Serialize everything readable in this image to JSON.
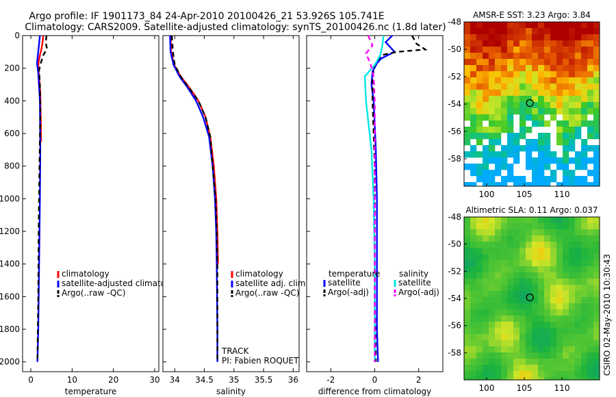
{
  "header": {
    "line1": "Argo profile: IF 1901173_84 24-Apr-2010 20100426_21 53.926S 105.741E",
    "line2": "Climatology: CARS2009. Satellite-adjusted climatology: synTS_20100426.nc (1.8d later)"
  },
  "side_label": "CSIRO 02-May-2010 10:30:43",
  "colors": {
    "red": "#ff0000",
    "blue": "#0000ff",
    "black": "#000000",
    "cyan": "#00e5e5",
    "magenta": "#ff00ff"
  },
  "chart_data": [
    {
      "type": "line",
      "title": "",
      "xlabel": "temperature",
      "ylabel": "",
      "xlim": [
        -2,
        31
      ],
      "ylim": [
        2060,
        0
      ],
      "xticks": [
        0,
        10,
        20,
        30
      ],
      "xtick_labels": [
        "0",
        "10",
        "20",
        "30"
      ],
      "yticks": [
        0,
        200,
        400,
        600,
        800,
        1000,
        1200,
        1400,
        1600,
        1800,
        2000
      ],
      "ytick_labels": [
        "0",
        "200",
        "400",
        "600",
        "800",
        "1000",
        "1200",
        "1400",
        "1600",
        "1800",
        "2000"
      ],
      "legend": [
        "climatology",
        "satellite-adjusted climatology",
        "Argo(..raw -QC)"
      ],
      "series": [
        {
          "name": "climatology",
          "color": "red",
          "style": "solid",
          "points": [
            [
              3.0,
              0
            ],
            [
              2.9,
              30
            ],
            [
              2.6,
              80
            ],
            [
              2.2,
              120
            ],
            [
              1.9,
              160
            ],
            [
              1.8,
              190
            ],
            [
              2.0,
              250
            ],
            [
              2.3,
              350
            ],
            [
              2.4,
              500
            ],
            [
              2.5,
              650
            ]
          ]
        },
        {
          "name": "satellite-adjusted climatology",
          "color": "blue",
          "style": "solid",
          "points": [
            [
              2.2,
              0
            ],
            [
              2.0,
              50
            ],
            [
              1.7,
              120
            ],
            [
              1.5,
              170
            ],
            [
              1.8,
              230
            ],
            [
              2.2,
              400
            ],
            [
              2.3,
              700
            ],
            [
              2.2,
              1000
            ],
            [
              2.0,
              1400
            ],
            [
              1.8,
              1800
            ],
            [
              1.6,
              2000
            ]
          ]
        },
        {
          "name": "Argo(..raw -QC)",
          "color": "black",
          "style": "dashed",
          "points": [
            [
              3.8,
              0
            ],
            [
              3.6,
              40
            ],
            [
              3.9,
              80
            ],
            [
              3.0,
              120
            ],
            [
              2.4,
              170
            ],
            [
              2.0,
              210
            ],
            [
              2.2,
              300
            ],
            [
              2.3,
              450
            ],
            [
              2.1,
              800
            ],
            [
              1.9,
              1200
            ],
            [
              1.8,
              1600
            ],
            [
              1.6,
              2000
            ]
          ]
        }
      ]
    },
    {
      "type": "line",
      "title": "",
      "xlabel": "salinity",
      "ylabel": "",
      "xlim": [
        33.8,
        36.1
      ],
      "ylim": [
        2060,
        0
      ],
      "xticks": [
        34,
        34.5,
        35,
        35.5,
        36
      ],
      "xtick_labels": [
        "34",
        "34.5",
        "35",
        "35.5",
        "36"
      ],
      "legend": [
        "climatology",
        "satellite adj. clim.",
        "Argo(..raw -QC)"
      ],
      "annotations": [
        "TRACK",
        "PI: Fabien ROQUET"
      ],
      "series": [
        {
          "name": "climatology",
          "color": "red",
          "style": "solid",
          "points": [
            [
              33.93,
              0
            ],
            [
              33.94,
              100
            ],
            [
              33.99,
              180
            ],
            [
              34.1,
              250
            ],
            [
              34.25,
              320
            ],
            [
              34.4,
              400
            ],
            [
              34.52,
              500
            ],
            [
              34.6,
              620
            ],
            [
              34.66,
              800
            ],
            [
              34.7,
              1000
            ],
            [
              34.72,
              1200
            ],
            [
              34.73,
              1400
            ]
          ]
        },
        {
          "name": "satellite adj. clim.",
          "color": "blue",
          "style": "solid",
          "points": [
            [
              33.92,
              0
            ],
            [
              33.93,
              100
            ],
            [
              33.98,
              180
            ],
            [
              34.08,
              250
            ],
            [
              34.22,
              320
            ],
            [
              34.36,
              400
            ],
            [
              34.48,
              500
            ],
            [
              34.58,
              620
            ],
            [
              34.64,
              800
            ],
            [
              34.68,
              1000
            ],
            [
              34.7,
              1200
            ],
            [
              34.71,
              1400
            ],
            [
              34.72,
              1800
            ],
            [
              34.72,
              2000
            ]
          ]
        },
        {
          "name": "Argo(..raw -QC)",
          "color": "black",
          "style": "dashed",
          "points": [
            [
              33.95,
              0
            ],
            [
              33.97,
              100
            ],
            [
              34.0,
              180
            ],
            [
              34.1,
              250
            ],
            [
              34.24,
              320
            ],
            [
              34.4,
              400
            ],
            [
              34.52,
              500
            ],
            [
              34.6,
              620
            ],
            [
              34.64,
              800
            ],
            [
              34.69,
              1000
            ],
            [
              34.71,
              1200
            ],
            [
              34.72,
              1400
            ],
            [
              34.72,
              1800
            ],
            [
              34.72,
              2000
            ]
          ]
        }
      ]
    },
    {
      "type": "line",
      "title": "",
      "xlabel": "difference from climatology",
      "ylabel": "",
      "xlim": [
        -3.1,
        3.1
      ],
      "ylim": [
        2060,
        0
      ],
      "xticks": [
        -2,
        0,
        2
      ],
      "xtick_labels": [
        "-2",
        "0",
        "2"
      ],
      "legend_headers": [
        "temperature",
        "salinity"
      ],
      "legend": [
        "satellite",
        "Argo(-adj)",
        "satellite",
        "Argo(-adj)"
      ],
      "series": [
        {
          "name": "temperature satellite",
          "color": "blue",
          "style": "solid",
          "points": [
            [
              0.8,
              0
            ],
            [
              0.5,
              40
            ],
            [
              0.9,
              100
            ],
            [
              0.3,
              140
            ],
            [
              0.1,
              170
            ],
            [
              -0.1,
              220
            ],
            [
              -0.15,
              300
            ],
            [
              -0.05,
              400
            ],
            [
              0.05,
              700
            ],
            [
              0.1,
              1000
            ],
            [
              0.1,
              1400
            ],
            [
              0.1,
              1800
            ],
            [
              0.15,
              2000
            ]
          ]
        },
        {
          "name": "temperature Argo(-adj)",
          "color": "black",
          "style": "dashed",
          "points": [
            [
              1.7,
              0
            ],
            [
              1.9,
              50
            ],
            [
              2.3,
              85
            ],
            [
              1.0,
              100
            ],
            [
              0.3,
              120
            ],
            [
              0.0,
              180
            ],
            [
              -0.1,
              250
            ],
            [
              -0.1,
              400
            ],
            [
              0.0,
              800
            ],
            [
              0.0,
              1200
            ],
            [
              0.0,
              1600
            ],
            [
              0.05,
              2000
            ]
          ]
        },
        {
          "name": "salinity satellite",
          "color": "cyan",
          "style": "solid",
          "points": [
            [
              0.4,
              0
            ],
            [
              0.35,
              60
            ],
            [
              0.25,
              120
            ],
            [
              0.0,
              180
            ],
            [
              -0.45,
              250
            ],
            [
              -0.4,
              400
            ],
            [
              -0.15,
              700
            ],
            [
              -0.05,
              1000
            ],
            [
              0.0,
              1400
            ],
            [
              0.0,
              1800
            ],
            [
              0.0,
              2000
            ]
          ]
        },
        {
          "name": "salinity Argo(-adj)",
          "color": "magenta",
          "style": "dashed",
          "points": [
            [
              -0.3,
              0
            ],
            [
              -0.1,
              60
            ],
            [
              -0.4,
              110
            ],
            [
              -0.2,
              170
            ],
            [
              -0.05,
              250
            ],
            [
              0.0,
              400
            ],
            [
              0.0,
              800
            ],
            [
              0.0,
              1200
            ],
            [
              0.0,
              2000
            ]
          ]
        }
      ]
    },
    {
      "type": "heatmap",
      "title": "AMSR-E SST: 3.23 Argo: 3.84",
      "xlim": [
        97,
        115
      ],
      "ylim": [
        -60,
        -48
      ],
      "xticks": [
        100,
        105,
        110
      ],
      "xtick_labels": [
        "100",
        "105",
        "110"
      ],
      "yticks": [
        -48,
        -50,
        -52,
        -54,
        -56,
        -58
      ],
      "ytick_labels": [
        "-48",
        "-50",
        "-52",
        "-54",
        "-56",
        "-58"
      ],
      "marker": [
        105.741,
        -53.926
      ]
    },
    {
      "type": "heatmap",
      "title": "Altimetric SLA: 0.11 Argo: 0.037",
      "xlim": [
        97,
        115
      ],
      "ylim": [
        -60,
        -48
      ],
      "xticks": [
        100,
        105,
        110
      ],
      "xtick_labels": [
        "100",
        "105",
        "110"
      ],
      "yticks": [
        -48,
        -50,
        -52,
        -54,
        -56,
        -58
      ],
      "ytick_labels": [
        "-48",
        "-50",
        "-52",
        "-54",
        "-56",
        "-58"
      ],
      "marker": [
        105.741,
        -53.926
      ]
    }
  ]
}
